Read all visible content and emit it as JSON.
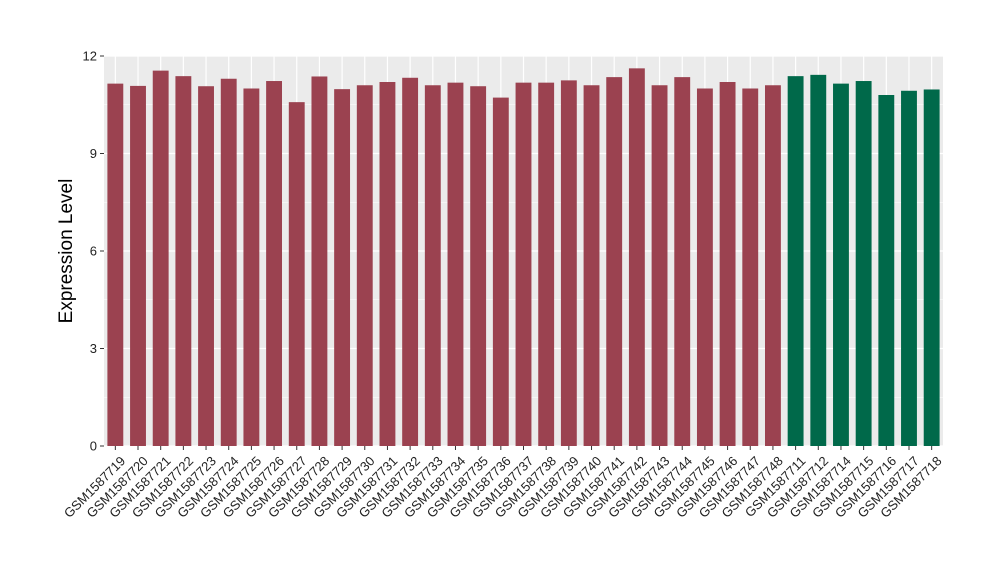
{
  "chart_data": {
    "type": "bar",
    "title": "",
    "xlabel": "",
    "ylabel": "Expression Level",
    "ylim": [
      0,
      12
    ],
    "yticks": [
      "0",
      "3",
      "6",
      "9",
      "12"
    ],
    "grid": true,
    "legend": "none",
    "colors": {
      "group_a": "#9b4250",
      "group_b": "#00694a",
      "panel_bg": "#ebebeb",
      "grid_line": "#ffffff"
    },
    "categories": [
      "GSM1587719",
      "GSM1587720",
      "GSM1587721",
      "GSM1587722",
      "GSM1587723",
      "GSM1587724",
      "GSM1587725",
      "GSM1587726",
      "GSM1587727",
      "GSM1587728",
      "GSM1587729",
      "GSM1587730",
      "GSM1587731",
      "GSM1587732",
      "GSM1587733",
      "GSM1587734",
      "GSM1587735",
      "GSM1587736",
      "GSM1587737",
      "GSM1587738",
      "GSM1587739",
      "GSM1587740",
      "GSM1587741",
      "GSM1587742",
      "GSM1587743",
      "GSM1587744",
      "GSM1587745",
      "GSM1587746",
      "GSM1587747",
      "GSM1587748",
      "GSM1587711",
      "GSM1587712",
      "GSM1587714",
      "GSM1587715",
      "GSM1587716",
      "GSM1587717",
      "GSM1587718"
    ],
    "values": [
      11.15,
      11.08,
      11.55,
      11.38,
      11.07,
      11.3,
      11.0,
      11.23,
      10.58,
      11.37,
      10.98,
      11.1,
      11.2,
      11.33,
      11.1,
      11.18,
      11.07,
      10.72,
      11.18,
      11.18,
      11.25,
      11.1,
      11.35,
      11.62,
      11.1,
      11.35,
      11.0,
      11.2,
      11.0,
      11.1,
      11.38,
      11.42,
      11.15,
      11.23,
      10.8,
      10.93,
      10.97
    ],
    "groups": [
      "a",
      "a",
      "a",
      "a",
      "a",
      "a",
      "a",
      "a",
      "a",
      "a",
      "a",
      "a",
      "a",
      "a",
      "a",
      "a",
      "a",
      "a",
      "a",
      "a",
      "a",
      "a",
      "a",
      "a",
      "a",
      "a",
      "a",
      "a",
      "a",
      "a",
      "b",
      "b",
      "b",
      "b",
      "b",
      "b",
      "b"
    ]
  }
}
